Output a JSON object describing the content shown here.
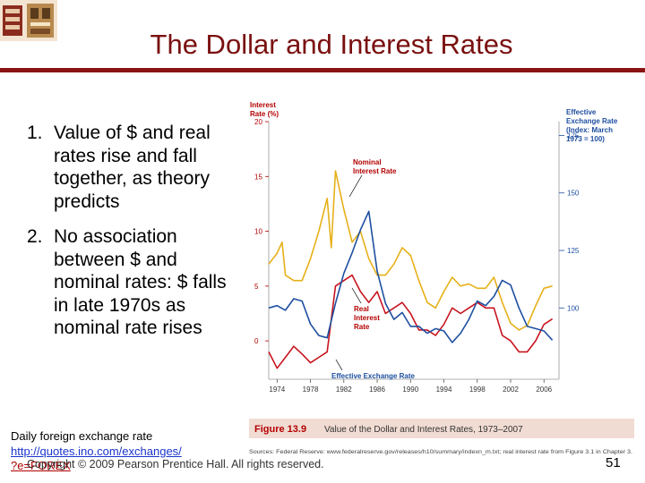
{
  "slide": {
    "title": "The Dollar and Interest Rates",
    "points": [
      {
        "num": "1.",
        "text": "Value of $ and real rates rise and fall together, as theory predicts"
      },
      {
        "num": "2.",
        "text": "No association between $ and nominal rates: $ falls in late 1970s as nominal rate rises"
      }
    ],
    "footer": {
      "source_line1": "Daily foreign exchange rate",
      "source_line2": "http://quotes.ino.com/exchanges/",
      "source_line3": "?e=FOREX",
      "copyright": "Copyright © 2009 Pearson Prentice Hall. All rights reserved.",
      "page_number": "51"
    },
    "colors": {
      "title": "#7a1010",
      "rule": "#8a1414",
      "figure_label": "#b30000"
    }
  },
  "chart_data": {
    "type": "line",
    "figure_label": "Figure 13.9",
    "figure_title": "Value of the Dollar and Interest Rates, 1973–2007",
    "sources_text": "Sources: Federal Reserve: www.federalreserve.gov/releases/h10/summary/indexn_m.txt; real interest rate from Figure 3.1 in Chapter 3.",
    "left_axis": {
      "label_line1": "Interest",
      "label_line2": "Rate (%)",
      "ticks": [
        0,
        5,
        10,
        15,
        20
      ],
      "range": [
        -3.5,
        20
      ]
    },
    "right_axis": {
      "label_lines": [
        "Effective",
        "Exchange Rate",
        "(Index: March",
        "1973 = 100)"
      ],
      "ticks": [
        100,
        125,
        150,
        175
      ],
      "range": [
        69,
        181
      ]
    },
    "x_ticks": [
      "1974",
      "1978",
      "1982",
      "1986",
      "1990",
      "1994",
      "1998",
      "2002",
      "2006"
    ],
    "x_range": [
      1973,
      2007.8
    ],
    "annotations": {
      "nominal": [
        "Nominal",
        "Interest Rate"
      ],
      "real": [
        "Real",
        "Interest",
        "Rate"
      ],
      "exchange": "Effective Exchange Rate"
    },
    "series": [
      {
        "name": "Nominal Interest Rate",
        "axis": "left",
        "color": "#e6b019",
        "x": [
          1973,
          1974,
          1974.6,
          1975,
          1976,
          1977,
          1978,
          1979,
          1980,
          1980.5,
          1981,
          1982,
          1983,
          1984,
          1985,
          1986,
          1987,
          1988,
          1989,
          1990,
          1991,
          1992,
          1993,
          1994,
          1995,
          1996,
          1997,
          1998,
          1999,
          2000,
          2001,
          2002,
          2003,
          2004,
          2005,
          2006,
          2007
        ],
        "y": [
          7,
          8,
          9,
          6,
          5.5,
          5.5,
          7.5,
          10,
          13,
          8.5,
          15.5,
          12,
          9,
          10,
          7.5,
          6,
          6,
          7,
          8.5,
          7.8,
          5.5,
          3.5,
          3,
          4.5,
          5.8,
          5,
          5.2,
          4.8,
          4.8,
          5.8,
          3.5,
          1.6,
          1,
          1.4,
          3.2,
          4.8,
          5
        ]
      },
      {
        "name": "Real Interest Rate",
        "axis": "left",
        "color": "#c8141e",
        "x": [
          1973,
          1974,
          1975,
          1976,
          1977,
          1978,
          1979,
          1980,
          1981,
          1982,
          1983,
          1984,
          1985,
          1986,
          1987,
          1988,
          1989,
          1990,
          1991,
          1992,
          1993,
          1994,
          1995,
          1996,
          1997,
          1998,
          1999,
          2000,
          2001,
          2002,
          2003,
          2004,
          2005,
          2006,
          2007
        ],
        "y": [
          -1,
          -2.5,
          -1.5,
          -0.5,
          -1.2,
          -2,
          -1.5,
          -1,
          5,
          5.5,
          6,
          4.5,
          3.5,
          4.5,
          2.5,
          3,
          3.5,
          2.5,
          1,
          1,
          0.5,
          1.5,
          3,
          2.5,
          3,
          3.5,
          3,
          3,
          0.5,
          0,
          -1,
          -1,
          0,
          1.5,
          2
        ]
      },
      {
        "name": "Effective Exchange Rate",
        "axis": "right",
        "color": "#1e4fa0",
        "x": [
          1973,
          1974,
          1975,
          1976,
          1977,
          1978,
          1979,
          1980,
          1981,
          1982,
          1983,
          1984,
          1985,
          1986,
          1987,
          1988,
          1989,
          1990,
          1991,
          1992,
          1993,
          1994,
          1995,
          1996,
          1997,
          1998,
          1999,
          2000,
          2001,
          2002,
          2003,
          2004,
          2005,
          2006,
          2007
        ],
        "y": [
          100,
          101,
          99,
          104,
          103,
          93,
          88,
          87,
          102,
          115,
          124,
          134,
          142,
          116,
          102,
          95,
          98,
          92,
          92,
          89,
          91,
          90,
          85,
          89,
          95,
          103,
          101,
          105,
          112,
          110,
          100,
          92,
          91,
          90,
          86
        ]
      }
    ]
  }
}
